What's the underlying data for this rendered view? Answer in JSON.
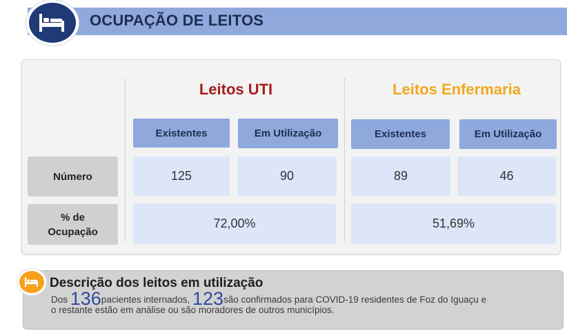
{
  "header": {
    "title": "OCUPAÇÃO DE LEITOS",
    "icon": "bed-icon",
    "bar_color": "#8fa9dd",
    "circle_color": "#1f3a77"
  },
  "table": {
    "groups": [
      {
        "title": "Leitos UTI",
        "color": "#a51d1d"
      },
      {
        "title": "Leitos Enfermaria",
        "color": "#f2a81d"
      }
    ],
    "col_headers": [
      "Existentes",
      "Em Utilização",
      "Existentes",
      "Em Utilização"
    ],
    "row_headers": {
      "numero": "Número",
      "ocupacao_line1": "% de",
      "ocupacao_line2": "Ocupação"
    },
    "numero_values": [
      "125",
      "90",
      "89",
      "46"
    ],
    "ocupacao_values": [
      "72,00%",
      "51,69%"
    ]
  },
  "description": {
    "icon": "bed-icon",
    "icon_color": "#f5a21a",
    "title": "Descrição dos leitos em utilização",
    "prefix": "Dos ",
    "total": "136",
    "middle": "pacientes internados, ",
    "confirmed": "123",
    "line1_rest": "são confirmados para COVID-19 residentes de Foz do Iguaçu e",
    "line2": "o restante estão em análise ou são moradores de outros municípios."
  }
}
